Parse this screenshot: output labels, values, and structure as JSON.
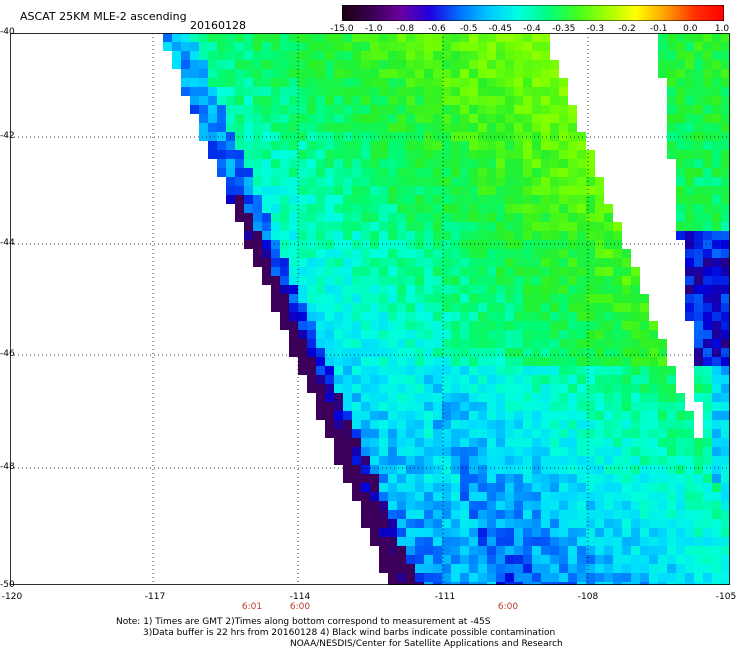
{
  "header": {
    "title": "ASCAT 25KM MLE-2 ascending",
    "date": "20160128"
  },
  "colorbar": {
    "labels": [
      "-15.0",
      "-1.0",
      "-0.8",
      "-0.6",
      "-0.5",
      "-0.45",
      "-0.4",
      "-0.35",
      "-0.3",
      "-0.2",
      "-0.1",
      "0.0",
      "1.0"
    ],
    "colors": [
      "#1a0010",
      "#3a0050",
      "#6a00a0",
      "#2000e0",
      "#0070ff",
      "#00c8ff",
      "#00ffe0",
      "#00ff80",
      "#40ff20",
      "#a0ff00",
      "#ffff00",
      "#ffa000",
      "#ff3000",
      "#ff0000"
    ]
  },
  "axes": {
    "lat_ticks": [
      "-40",
      "-42",
      "-44",
      "-46",
      "-48",
      "-50"
    ],
    "lon_ticks": [
      "-120",
      "-117",
      "-114",
      "-111",
      "-108",
      "-105"
    ],
    "times": [
      "6:01",
      "6:00",
      "6:00"
    ]
  },
  "notes": {
    "line1": "Note: 1) Times are GMT 2)Times along bottom correspond to measurement at -45S",
    "line2": "3)Data buffer is 22 hrs from 20160128 4) Black wind barbs indicate possible contamination",
    "line3": "NOAA/NESDIS/Center for Satellite Applications and Research"
  }
}
